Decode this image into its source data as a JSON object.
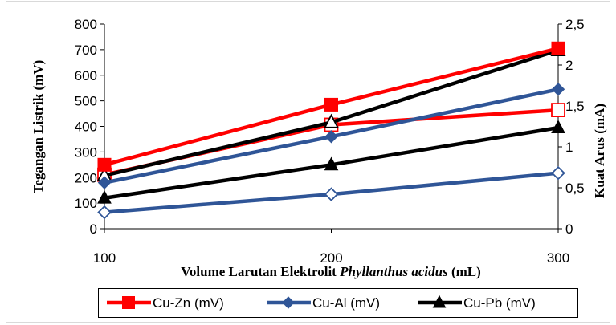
{
  "chart_data": {
    "type": "line",
    "x": [
      100,
      200,
      300
    ],
    "xlim": [
      100,
      300
    ],
    "x_ticks": [
      100,
      200,
      300
    ],
    "xlabel_parts": [
      {
        "text": "Volume Larutan Elektrolit ",
        "italic": false
      },
      {
        "text": "Phyllanthus acidus",
        "italic": true
      },
      {
        "text": " (mL)",
        "italic": false
      }
    ],
    "ylabel_left": "Tegangan Listrik (mV)",
    "ylim_left": [
      0,
      800
    ],
    "y_ticks_left": [
      "0",
      "100",
      "200",
      "300",
      "400",
      "500",
      "600",
      "700",
      "800"
    ],
    "ylabel_right": "Kuat Arus (mA)",
    "ylim_right": [
      0,
      2.5
    ],
    "y_ticks_right": [
      "0",
      "0,5",
      "1",
      "1,5",
      "2",
      "2,5"
    ],
    "grid": false,
    "legend_position": "bottom",
    "series": [
      {
        "name": "Cu-Zn (mV)",
        "axis": "left",
        "marker": "square",
        "filled": true,
        "color": "#FF0000",
        "values": [
          250,
          485,
          705
        ],
        "in_legend": true
      },
      {
        "name": "Cu-Al (mV)",
        "axis": "left",
        "marker": "diamond",
        "filled": true,
        "color": "#2F5597",
        "values": [
          180,
          360,
          545
        ],
        "in_legend": true
      },
      {
        "name": "Cu-Pb (mV)",
        "axis": "left",
        "marker": "triangle",
        "filled": true,
        "color": "#000000",
        "values": [
          120,
          250,
          395
        ],
        "in_legend": true
      },
      {
        "axis": "right",
        "marker": "square",
        "filled": false,
        "color": "#FF0000",
        "values": [
          0.66,
          1.27,
          1.45
        ],
        "in_legend": false
      },
      {
        "axis": "right",
        "marker": "diamond",
        "filled": false,
        "color": "#2F5597",
        "values": [
          0.2,
          0.42,
          0.68
        ],
        "in_legend": false
      },
      {
        "axis": "right",
        "marker": "triangle",
        "filled": false,
        "color": "#000000",
        "values": [
          0.65,
          1.3,
          2.18
        ],
        "in_legend": false
      }
    ]
  }
}
